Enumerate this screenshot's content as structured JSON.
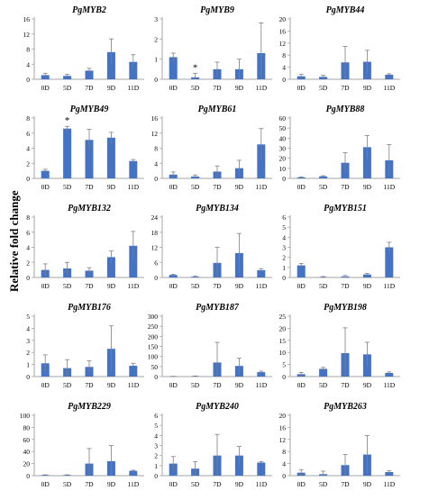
{
  "figure": {
    "ylabel": "Relative fold change"
  },
  "colors": {
    "bar": "#4472C4",
    "axis": "#A6A6A6",
    "error": "#7F7F7F"
  },
  "chart_data": [
    {
      "type": "bar",
      "title": "PgMYB2",
      "categories": [
        "0D",
        "5D",
        "7D",
        "9D",
        "11D"
      ],
      "values": [
        1.1,
        0.9,
        2.3,
        7.2,
        4.6
      ],
      "errors": [
        0.5,
        0.4,
        0.6,
        3.5,
        1.9
      ],
      "ylim": [
        0,
        16
      ],
      "yticks": [
        0,
        4,
        8,
        12,
        16
      ],
      "annotations": []
    },
    {
      "type": "bar",
      "title": "PgMYB9",
      "categories": [
        "0D",
        "5D",
        "7D",
        "9D",
        "11D"
      ],
      "values": [
        1.1,
        0.1,
        0.5,
        0.5,
        1.3
      ],
      "errors": [
        0.2,
        0.2,
        0.35,
        0.5,
        1.5
      ],
      "ylim": [
        0,
        3
      ],
      "yticks": [
        0,
        1,
        2,
        3
      ],
      "annotations": [
        {
          "index": 1,
          "text": "*"
        }
      ]
    },
    {
      "type": "bar",
      "title": "PgMYB44",
      "categories": [
        "0D",
        "5D",
        "7D",
        "9D",
        "11D"
      ],
      "values": [
        1.0,
        0.8,
        5.6,
        5.8,
        1.5
      ],
      "errors": [
        0.6,
        0.5,
        5.3,
        3.8,
        0.3
      ],
      "ylim": [
        0,
        20
      ],
      "yticks": [
        0,
        4,
        8,
        12,
        16,
        20
      ],
      "annotations": []
    },
    {
      "type": "bar",
      "title": "PgMYB49",
      "categories": [
        "0D",
        "5D",
        "7D",
        "9D",
        "11D"
      ],
      "values": [
        1.0,
        6.6,
        5.1,
        5.4,
        2.3
      ],
      "errors": [
        0.2,
        0.3,
        1.4,
        0.7,
        0.2
      ],
      "ylim": [
        0,
        8
      ],
      "yticks": [
        0,
        2,
        4,
        6,
        8
      ],
      "annotations": [
        {
          "index": 1,
          "text": "*"
        }
      ]
    },
    {
      "type": "bar",
      "title": "PgMYB61",
      "categories": [
        "0D",
        "5D",
        "7D",
        "9D",
        "11D"
      ],
      "values": [
        1.0,
        0.5,
        1.8,
        2.7,
        9.0
      ],
      "errors": [
        0.7,
        0.4,
        1.5,
        2.1,
        4.2
      ],
      "ylim": [
        0,
        16
      ],
      "yticks": [
        0,
        4,
        8,
        12,
        16
      ],
      "annotations": []
    },
    {
      "type": "bar",
      "title": "PgMYB88",
      "categories": [
        "0D",
        "5D",
        "7D",
        "9D",
        "11D"
      ],
      "values": [
        1.0,
        2.0,
        15.5,
        31.0,
        18.0
      ],
      "errors": [
        0.5,
        0.6,
        10.0,
        11.5,
        15.5
      ],
      "ylim": [
        0,
        60
      ],
      "yticks": [
        0,
        10,
        20,
        30,
        40,
        50,
        60
      ],
      "annotations": []
    },
    {
      "type": "bar",
      "title": "PgMYB132",
      "categories": [
        "0D",
        "5D",
        "7D",
        "9D",
        "11D"
      ],
      "values": [
        1.0,
        1.2,
        0.9,
        2.7,
        4.2
      ],
      "errors": [
        0.8,
        0.8,
        0.4,
        0.8,
        1.9
      ],
      "ylim": [
        0,
        8
      ],
      "yticks": [
        0,
        2,
        4,
        6,
        8
      ],
      "annotations": []
    },
    {
      "type": "bar",
      "title": "PgMYB134",
      "categories": [
        "0D",
        "5D",
        "7D",
        "9D",
        "11D"
      ],
      "values": [
        1.0,
        0.3,
        5.8,
        9.7,
        2.9
      ],
      "errors": [
        0.3,
        0.3,
        6.2,
        7.8,
        0.6
      ],
      "ylim": [
        0,
        24
      ],
      "yticks": [
        0,
        6,
        12,
        18,
        24
      ],
      "annotations": []
    },
    {
      "type": "bar",
      "title": "PgMYB151",
      "categories": [
        "0D",
        "5D",
        "7D",
        "9D",
        "11D"
      ],
      "values": [
        1.2,
        0.05,
        0.1,
        0.3,
        3.0
      ],
      "errors": [
        0.2,
        0.05,
        0.1,
        0.1,
        0.5
      ],
      "ylim": [
        0,
        6
      ],
      "yticks": [
        0,
        1,
        2,
        3,
        4,
        5,
        6
      ],
      "annotations": []
    },
    {
      "type": "bar",
      "title": "PgMYB176",
      "categories": [
        "0D",
        "5D",
        "7D",
        "9D",
        "11D"
      ],
      "values": [
        1.1,
        0.7,
        0.8,
        2.3,
        0.9
      ],
      "errors": [
        0.7,
        0.7,
        0.5,
        1.9,
        0.2
      ],
      "ylim": [
        0,
        5
      ],
      "yticks": [
        0,
        1,
        2,
        3,
        4,
        5
      ],
      "annotations": []
    },
    {
      "type": "bar",
      "title": "PgMYB187",
      "categories": [
        "0D",
        "5D",
        "7D",
        "9D",
        "11D"
      ],
      "values": [
        1.0,
        2.0,
        70.0,
        53.0,
        22.0
      ],
      "errors": [
        0.5,
        1.0,
        100.0,
        38.0,
        5.0
      ],
      "ylim": [
        0,
        300
      ],
      "yticks": [
        0,
        50,
        100,
        150,
        200,
        250,
        300
      ],
      "annotations": []
    },
    {
      "type": "bar",
      "title": "PgMYB198",
      "categories": [
        "0D",
        "5D",
        "7D",
        "9D",
        "11D"
      ],
      "values": [
        1.0,
        3.2,
        9.7,
        9.2,
        1.5
      ],
      "errors": [
        0.7,
        0.6,
        10.5,
        5.0,
        0.4
      ],
      "ylim": [
        0,
        25
      ],
      "yticks": [
        0,
        5,
        10,
        15,
        20,
        25
      ],
      "annotations": []
    },
    {
      "type": "bar",
      "title": "PgMYB229",
      "categories": [
        "0D",
        "5D",
        "7D",
        "9D",
        "11D"
      ],
      "values": [
        1.0,
        1.0,
        20.0,
        24.0,
        8.0
      ],
      "errors": [
        0.5,
        0.5,
        25.0,
        26.0,
        1.0
      ],
      "ylim": [
        0,
        100
      ],
      "yticks": [
        0,
        20,
        40,
        60,
        80,
        100
      ],
      "annotations": []
    },
    {
      "type": "bar",
      "title": "PgMYB240",
      "categories": [
        "0D",
        "5D",
        "7D",
        "9D",
        "11D"
      ],
      "values": [
        1.2,
        0.7,
        2.0,
        2.0,
        1.3
      ],
      "errors": [
        0.7,
        0.7,
        2.1,
        0.9,
        0.1
      ],
      "ylim": [
        0,
        6
      ],
      "yticks": [
        0,
        1,
        2,
        3,
        4,
        5,
        6
      ],
      "annotations": []
    },
    {
      "type": "bar",
      "title": "PgMYB263",
      "categories": [
        "0D",
        "5D",
        "7D",
        "9D",
        "11D"
      ],
      "values": [
        1.0,
        0.5,
        3.5,
        7.0,
        1.2
      ],
      "errors": [
        1.0,
        1.0,
        3.5,
        6.3,
        0.4
      ],
      "ylim": [
        0,
        20
      ],
      "yticks": [
        0,
        4,
        8,
        12,
        16,
        20
      ],
      "annotations": []
    }
  ]
}
